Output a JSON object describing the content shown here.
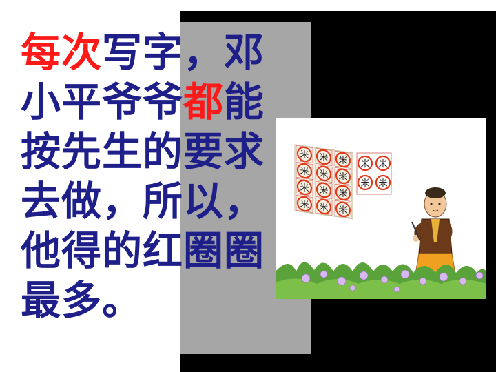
{
  "slide": {
    "lines": [
      {
        "segments": [
          {
            "text": "每次",
            "highlight": true
          },
          {
            "text": "写字，邓",
            "highlight": false
          }
        ]
      },
      {
        "segments": [
          {
            "text": "小平爷爷",
            "highlight": false
          },
          {
            "text": "都",
            "highlight": true
          },
          {
            "text": "能",
            "highlight": false
          }
        ]
      },
      {
        "segments": [
          {
            "text": "按先生的要求",
            "highlight": false
          }
        ]
      },
      {
        "segments": [
          {
            "text": "去做，所以，",
            "highlight": false
          }
        ]
      },
      {
        "segments": [
          {
            "text": "他得的红圈圈",
            "highlight": false
          }
        ]
      },
      {
        "segments": [
          {
            "text": "最多。",
            "highlight": false
          }
        ]
      }
    ],
    "colors": {
      "text": "#1f1f8a",
      "highlight": "#ff1a1a",
      "panel_black": "#000000",
      "panel_gray": "#a6a6a6",
      "background": "#ffffff"
    },
    "illustration": {
      "description_icon": "boy-writing-calligraphy-with-red-circled-characters",
      "sheet_characters": [
        "米",
        "米",
        "米",
        "米",
        "米",
        "米",
        "米",
        "米",
        "米",
        "米",
        "米",
        "米"
      ]
    }
  }
}
